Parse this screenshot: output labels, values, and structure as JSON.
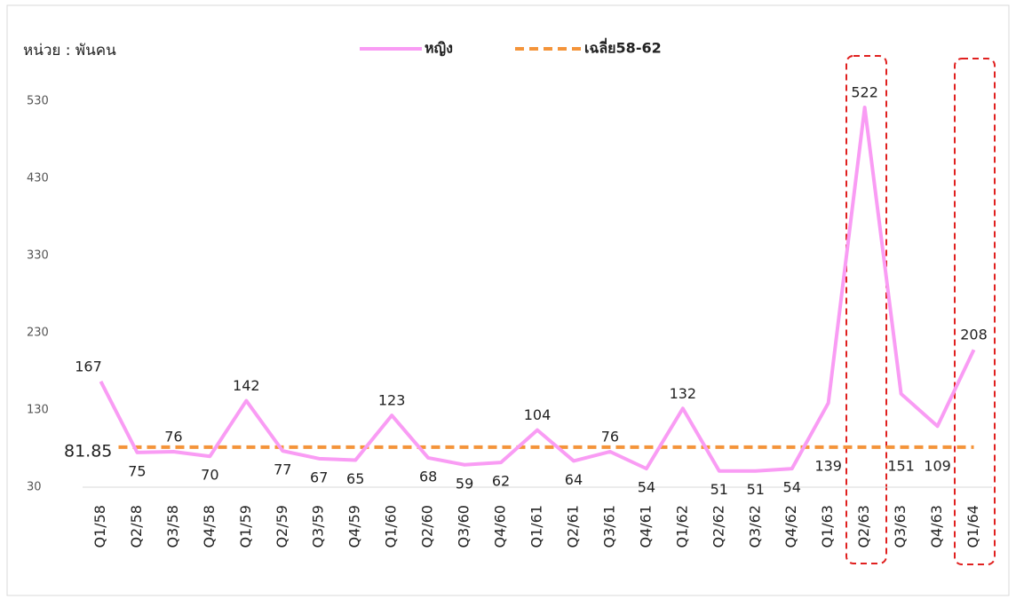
{
  "chart_data": {
    "type": "line",
    "unit_label": "หน่วย : พันคน",
    "categories": [
      "Q1/58",
      "Q2/58",
      "Q3/58",
      "Q4/58",
      "Q1/59",
      "Q2/59",
      "Q3/59",
      "Q4/59",
      "Q1/60",
      "Q2/60",
      "Q3/60",
      "Q4/60",
      "Q1/61",
      "Q2/61",
      "Q3/61",
      "Q4/61",
      "Q1/62",
      "Q2/62",
      "Q3/62",
      "Q4/62",
      "Q1/63",
      "Q2/63",
      "Q3/63",
      "Q4/63",
      "Q1/64"
    ],
    "series": [
      {
        "name": "หญิง",
        "color": "#f99cf4",
        "values": [
          167,
          75,
          76,
          70,
          142,
          77,
          67,
          65,
          123,
          68,
          59,
          62,
          104,
          64,
          76,
          54,
          132,
          51,
          51,
          54,
          139,
          522,
          151,
          109,
          208
        ]
      }
    ],
    "reference_line": {
      "name": "เฉลี่ย58-62",
      "value": 81.85,
      "color": "#f4943a"
    },
    "ylim": [
      30,
      560
    ],
    "yticks": [
      30,
      130,
      230,
      330,
      430,
      530
    ],
    "grid": false
  }
}
